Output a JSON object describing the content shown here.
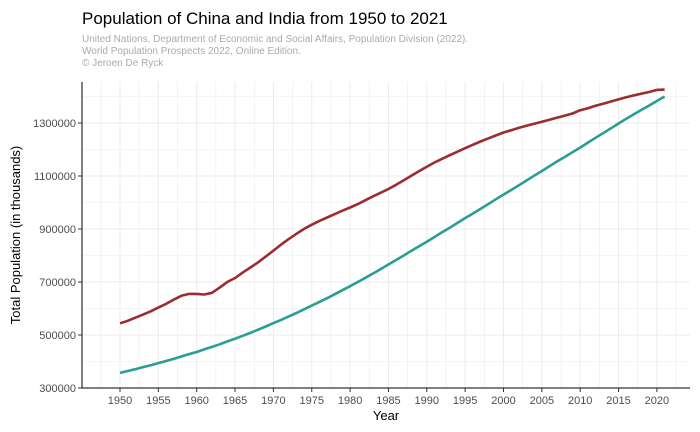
{
  "chart_data": {
    "type": "line",
    "title": "Population of China and India from 1950 to 2021",
    "subtitle_lines": [
      "United Nations, Department of Economic and Social Affairs, Population Division (2022).",
      "World Population Prospects 2022, Online Edition.",
      "© Jeroen De Ryck"
    ],
    "xlabel": "Year",
    "ylabel": "Total Population (in thousands)",
    "xlim": [
      1945,
      2024
    ],
    "ylim": [
      300000,
      1450000
    ],
    "x_ticks": [
      1950,
      1955,
      1960,
      1965,
      1970,
      1975,
      1980,
      1985,
      1990,
      1995,
      2000,
      2005,
      2010,
      2015,
      2020
    ],
    "y_ticks": [
      300000,
      500000,
      700000,
      900000,
      1100000,
      1300000
    ],
    "grid": true,
    "legend": "none",
    "x": [
      1950,
      1951,
      1952,
      1953,
      1954,
      1955,
      1956,
      1957,
      1958,
      1959,
      1960,
      1961,
      1962,
      1963,
      1964,
      1965,
      1966,
      1967,
      1968,
      1969,
      1970,
      1971,
      1972,
      1973,
      1974,
      1975,
      1976,
      1977,
      1978,
      1979,
      1980,
      1981,
      1982,
      1983,
      1984,
      1985,
      1986,
      1987,
      1988,
      1989,
      1990,
      1991,
      1992,
      1993,
      1994,
      1995,
      1996,
      1997,
      1998,
      1999,
      2000,
      2001,
      2002,
      2003,
      2004,
      2005,
      2006,
      2007,
      2008,
      2009,
      2010,
      2011,
      2012,
      2013,
      2014,
      2015,
      2016,
      2017,
      2018,
      2019,
      2020,
      2021
    ],
    "series": [
      {
        "color": "#9b2d30",
        "values": [
          543979,
          553412,
          565134,
          576944,
          589302,
          603398,
          617518,
          633149,
          647813,
          654996,
          654969,
          652840,
          659097,
          678818,
          700325,
          715185,
          735401,
          754551,
          774511,
          796025,
          818316,
          841105,
          862031,
          881940,
          900350,
          916395,
          930685,
          943455,
          956165,
          969005,
          981235,
          993885,
          1008630,
          1023310,
          1036825,
          1051040,
          1066790,
          1084035,
          1101630,
          1118650,
          1135185,
          1150780,
          1164970,
          1178440,
          1191835,
          1204855,
          1217550,
          1230075,
          1241935,
          1252735,
          1264099,
          1273000,
          1281500,
          1289500,
          1297200,
          1305000,
          1312600,
          1320200,
          1327900,
          1335800,
          1348191,
          1356000,
          1365000,
          1373000,
          1381000,
          1389000,
          1397000,
          1404000,
          1411000,
          1417000,
          1424930,
          1425894
        ]
      },
      {
        "color": "#2a9d95",
        "values": [
          357021,
          364000,
          371000,
          379000,
          386000,
          394000,
          402000,
          410000,
          419000,
          428000,
          436000,
          446000,
          455000,
          465000,
          476000,
          486000,
          497000,
          508000,
          520000,
          532000,
          545000,
          557000,
          570000,
          583000,
          597000,
          611000,
          625000,
          639000,
          654000,
          669000,
          684000,
          700000,
          716000,
          732000,
          749000,
          766000,
          783000,
          800000,
          818000,
          835000,
          852000,
          870000,
          888000,
          905000,
          923000,
          941000,
          958000,
          976000,
          994000,
          1012000,
          1030000,
          1047000,
          1065000,
          1083000,
          1101000,
          1119000,
          1137000,
          1155000,
          1172000,
          1190000,
          1207000,
          1226000,
          1244000,
          1262000,
          1280000,
          1298000,
          1316000,
          1333000,
          1350000,
          1366000,
          1383000,
          1400000
        ]
      }
    ]
  }
}
